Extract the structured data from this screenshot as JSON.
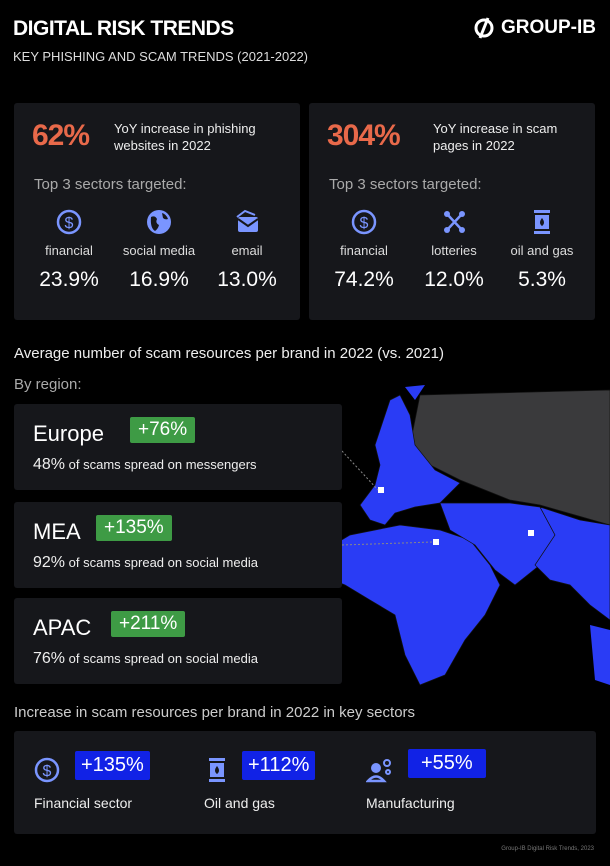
{
  "header": {
    "title": "DIGITAL RISK TRENDS",
    "subtitle": "KEY PHISHING AND SCAM TRENDS (2021-2022)",
    "logo": "GROUP-IB"
  },
  "phishing": {
    "value": "62%",
    "desc_line1": "YoY increase in phishing",
    "desc_line2": "websites in 2022",
    "top3_label": "Top 3 sectors targeted:",
    "sectors": [
      {
        "icon": "dollar-icon",
        "label": "financial",
        "value": "23.9%"
      },
      {
        "icon": "globe-icon",
        "label": "social media",
        "value": "16.9%"
      },
      {
        "icon": "email-icon",
        "label": "email",
        "value": "13.0%"
      }
    ]
  },
  "scam": {
    "value": "304%",
    "desc_line1": "YoY increase in scam",
    "desc_line2": "pages in 2022",
    "top3_label": "Top 3 sectors targeted:",
    "sectors": [
      {
        "icon": "dollar-icon",
        "label": "financial",
        "value": "74.2%"
      },
      {
        "icon": "network-icon",
        "label": "lotteries",
        "value": "12.0%"
      },
      {
        "icon": "oil-barrel-icon",
        "label": "oil and gas",
        "value": "5.3%"
      }
    ]
  },
  "regions_section": {
    "heading": "Average number of scam resources per brand in 2022 (vs. 2021)",
    "by_region": "By region:",
    "regions": [
      {
        "name": "Europe",
        "change": "+76%",
        "pct": "48%",
        "text": "of scams spread on messengers"
      },
      {
        "name": "MEA",
        "change": "+135%",
        "pct": "92%",
        "text": "of scams spread on social media"
      },
      {
        "name": "APAC",
        "change": "+211%",
        "pct": "76%",
        "text": "of scams spread on social media"
      }
    ]
  },
  "sectors_section": {
    "heading": "Increase in scam resources per brand in 2022 in key sectors",
    "items": [
      {
        "icon": "dollar-icon",
        "change": "+135%",
        "label": "Financial sector"
      },
      {
        "icon": "oil-barrel-icon",
        "change": "+112%",
        "label": "Oil and gas"
      },
      {
        "icon": "engineer-gear-icon",
        "change": "+55%",
        "label": "Manufacturing"
      }
    ]
  },
  "footer": "Group-IB Digital Risk Trends, 2023",
  "colors": {
    "accent_orange": "#e8694a",
    "green": "#3e9b45",
    "blue": "#1122e6",
    "map_blue": "#2a3cf5"
  }
}
